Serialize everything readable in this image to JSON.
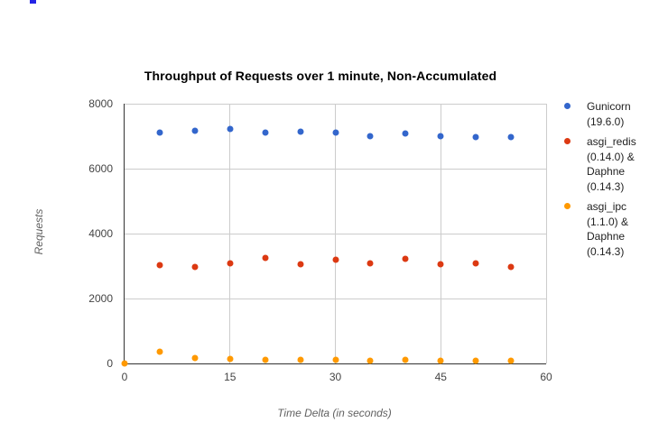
{
  "artifact": {
    "description": "tiny blue marker at top-left of screenshot",
    "color": "#2323e6"
  },
  "style": {
    "background": "#ffffff",
    "gridline_color": "#cccccc",
    "axis_line_color": "#333333",
    "tick_label_color": "#444444",
    "axis_title_color": "#616161",
    "title_color": "#000000",
    "legend_text_color": "#222222"
  },
  "chart_data": {
    "type": "scatter",
    "title": "Throughput of Requests over 1 minute, Non-Accumulated",
    "xlabel": "Time Delta (in seconds)",
    "ylabel": "Requests",
    "xlim": [
      0,
      60
    ],
    "ylim": [
      0,
      8000
    ],
    "x_ticks": [
      0,
      15,
      30,
      45,
      60
    ],
    "y_ticks": [
      0,
      2000,
      4000,
      6000,
      8000
    ],
    "grid": true,
    "legend_position": "right",
    "series": [
      {
        "name": "Gunicorn (19.6.0)",
        "color": "#3366cc",
        "x": [
          5,
          10,
          15,
          20,
          25,
          30,
          35,
          40,
          45,
          50,
          55
        ],
        "y": [
          7110,
          7170,
          7220,
          7110,
          7130,
          7100,
          7010,
          7075,
          6990,
          6965,
          6965
        ]
      },
      {
        "name": "asgi_redis (0.14.0) & Daphne (0.14.3)",
        "color": "#dc3912",
        "x": [
          5,
          10,
          15,
          20,
          25,
          30,
          35,
          40,
          45,
          50,
          55
        ],
        "y": [
          3030,
          2980,
          3090,
          3260,
          3065,
          3200,
          3075,
          3215,
          3065,
          3090,
          2980
        ]
      },
      {
        "name": "asgi_ipc (1.1.0) & Daphne (0.14.3)",
        "color": "#ff9900",
        "x": [
          0,
          5,
          10,
          15,
          20,
          25,
          30,
          35,
          40,
          45,
          50,
          55
        ],
        "y": [
          0,
          350,
          165,
          130,
          110,
          110,
          100,
          90,
          100,
          90,
          85,
          75
        ]
      }
    ]
  }
}
